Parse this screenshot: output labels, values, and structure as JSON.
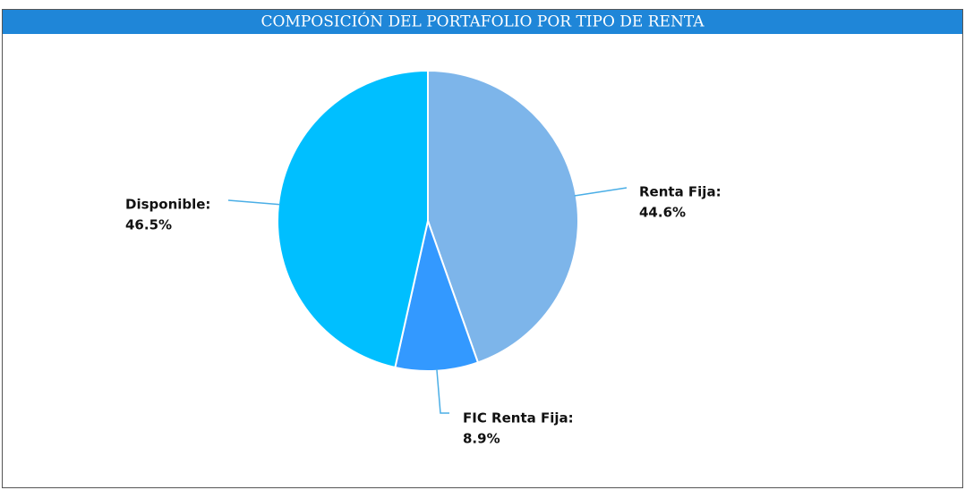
{
  "chart_data": {
    "type": "pie",
    "title": "COMPOSICIÓN DEL PORTAFOLIO POR TIPO DE RENTA",
    "categories": [
      "Renta Fija:",
      "FIC Renta Fija:",
      "Disponible:"
    ],
    "values": [
      44.6,
      8.9,
      46.5
    ],
    "value_labels": [
      "44.6%",
      "8.9%",
      "46.5%"
    ],
    "colors": [
      "#7db5ea",
      "#3399ff",
      "#00bfff"
    ]
  }
}
